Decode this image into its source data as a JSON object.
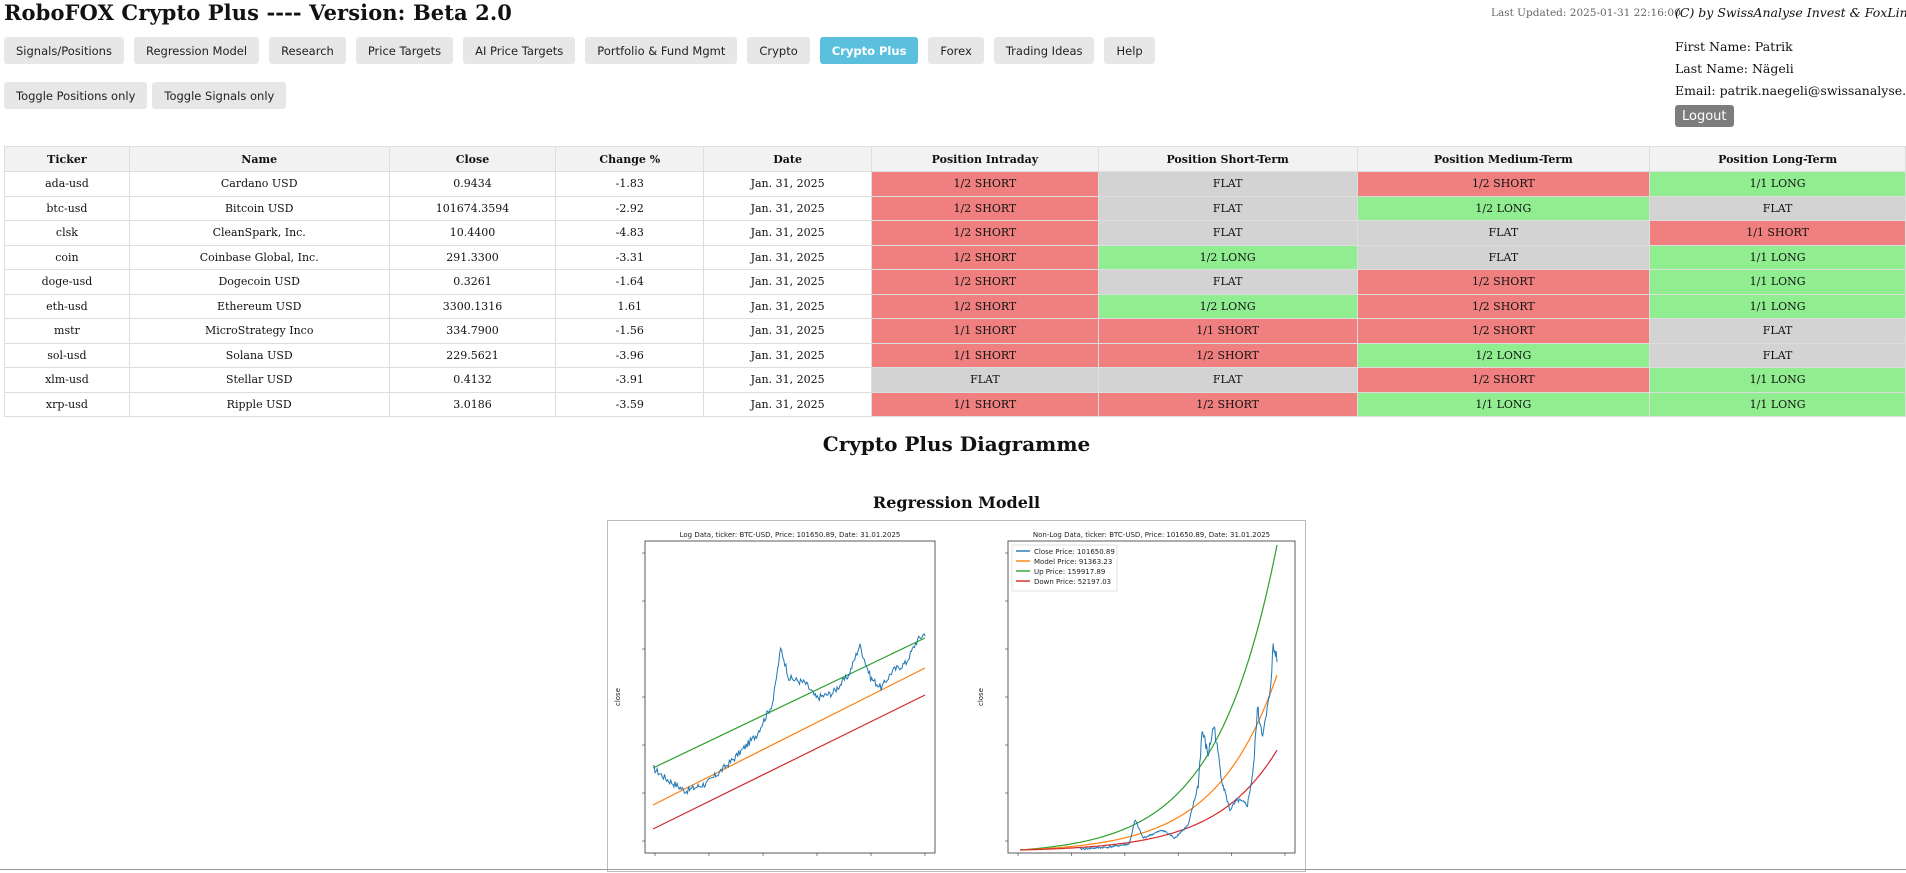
{
  "header": {
    "title": "RoboFOX Crypto Plus ---- Version: Beta 2.0",
    "last_updated": "Last Updated: 2025-01-31 22:16:00",
    "copyright": "(C) by SwissAnalyse Invest & FoxLink GmbH"
  },
  "user": {
    "first_name": "First Name: Patrik",
    "last_name": "Last Name: Nägeli",
    "email": "Email: patrik.naegeli@swissanalyse.ch",
    "logout_label": "Logout"
  },
  "nav": [
    {
      "label": "Signals/Positions"
    },
    {
      "label": "Regression Model"
    },
    {
      "label": "Research"
    },
    {
      "label": "Price Targets"
    },
    {
      "label": "AI Price Targets"
    },
    {
      "label": "Portfolio & Fund Mgmt"
    },
    {
      "label": "Crypto"
    },
    {
      "label": "Crypto Plus"
    },
    {
      "label": "Forex"
    },
    {
      "label": "Trading Ideas"
    },
    {
      "label": "Help"
    }
  ],
  "nav_active": "Crypto Plus",
  "toggles": {
    "positions_label": "Toggle Positions only",
    "signals_label": "Toggle Signals only"
  },
  "table": {
    "headers": [
      "Ticker",
      "Name",
      "Close",
      "Change %",
      "Date",
      "Position Intraday",
      "Position Short-Term",
      "Position Medium-Term",
      "Position Long-Term"
    ],
    "rows": [
      [
        "ada-usd",
        "Cardano USD",
        "0.9434",
        "-1.83",
        "Jan. 31, 2025",
        "1/2 SHORT",
        "FLAT",
        "1/2 SHORT",
        "1/1 LONG"
      ],
      [
        "btc-usd",
        "Bitcoin USD",
        "101674.3594",
        "-2.92",
        "Jan. 31, 2025",
        "1/2 SHORT",
        "FLAT",
        "1/2 LONG",
        "FLAT"
      ],
      [
        "clsk",
        "CleanSpark, Inc.",
        "10.4400",
        "-4.83",
        "Jan. 31, 2025",
        "1/2 SHORT",
        "FLAT",
        "FLAT",
        "1/1 SHORT"
      ],
      [
        "coin",
        "Coinbase Global, Inc.",
        "291.3300",
        "-3.31",
        "Jan. 31, 2025",
        "1/2 SHORT",
        "1/2 LONG",
        "FLAT",
        "1/1 LONG"
      ],
      [
        "doge-usd",
        "Dogecoin USD",
        "0.3261",
        "-1.64",
        "Jan. 31, 2025",
        "1/2 SHORT",
        "FLAT",
        "1/2 SHORT",
        "1/1 LONG"
      ],
      [
        "eth-usd",
        "Ethereum USD",
        "3300.1316",
        "1.61",
        "Jan. 31, 2025",
        "1/2 SHORT",
        "1/2 LONG",
        "1/2 SHORT",
        "1/1 LONG"
      ],
      [
        "mstr",
        "MicroStrategy Inco",
        "334.7900",
        "-1.56",
        "Jan. 31, 2025",
        "1/1 SHORT",
        "1/1 SHORT",
        "1/2 SHORT",
        "FLAT"
      ],
      [
        "sol-usd",
        "Solana USD",
        "229.5621",
        "-3.96",
        "Jan. 31, 2025",
        "1/1 SHORT",
        "1/2 SHORT",
        "1/2 LONG",
        "FLAT"
      ],
      [
        "xlm-usd",
        "Stellar USD",
        "0.4132",
        "-3.91",
        "Jan. 31, 2025",
        "FLAT",
        "FLAT",
        "1/2 SHORT",
        "1/1 LONG"
      ],
      [
        "xrp-usd",
        "Ripple USD",
        "3.0186",
        "-3.59",
        "Jan. 31, 2025",
        "1/1 SHORT",
        "1/2 SHORT",
        "1/1 LONG",
        "1/1 LONG"
      ]
    ]
  },
  "colors": {
    "short": "#f08080",
    "flat": "#d3d3d3",
    "long": "#90ee90",
    "active_tab": "#5bc0de",
    "close_line": "#1f77b4",
    "model_line": "#ff7f0e",
    "up_line": "#2ca02c",
    "down_line": "#d62728"
  },
  "section": {
    "title": "Crypto Plus Diagramme",
    "subtitle": "Regression Modell"
  },
  "chart_data": [
    {
      "type": "line",
      "title": "Log Data, ticker: BTC-USD, Price: 101650.89, Date: 31.01.2025",
      "ylabel": "close",
      "log_scale": true,
      "series": [
        {
          "name": "Close Price: 101650.89"
        },
        {
          "name": "Model Price: 91363.23"
        },
        {
          "name": "Up Price: 159917.89"
        },
        {
          "name": "Down Price: 52197.03"
        }
      ]
    },
    {
      "type": "line",
      "title": "Non-Log Data, ticker: BTC-USD, Price: 101650.89, Date: 31.01.2025",
      "ylabel": "close",
      "legend": "top-left",
      "series": [
        {
          "name": "Close Price: 101650.89"
        },
        {
          "name": "Model Price: 91363.23"
        },
        {
          "name": "Up Price: 159917.89"
        },
        {
          "name": "Down Price: 52197.03"
        }
      ]
    }
  ]
}
